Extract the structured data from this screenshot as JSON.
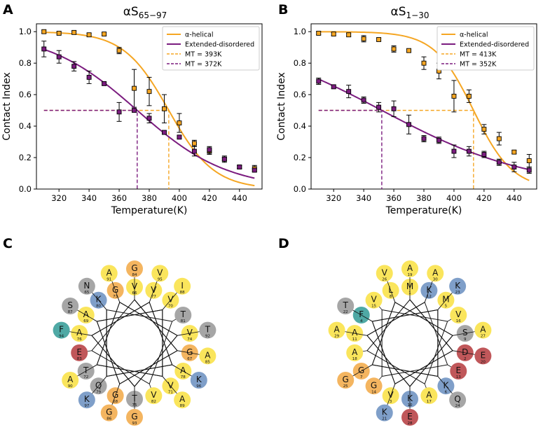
{
  "panels": {
    "A": {
      "letter": "A",
      "title_main": "αS",
      "title_sub": "65−97",
      "xlabel": "Temperature(K)",
      "ylabel": "Contact Index",
      "xticks": [
        320,
        340,
        360,
        380,
        400,
        420,
        440
      ],
      "yticks": [
        "0.0",
        "0.2",
        "0.4",
        "0.6",
        "0.8",
        "1.0"
      ],
      "legend": [
        "α-helical",
        "Extended-disordered",
        "MT = 393K",
        "MT = 372K"
      ]
    },
    "B": {
      "letter": "B",
      "title_main": "αS",
      "title_sub": "1−30",
      "xlabel": "Temperature(K)",
      "ylabel": "Contact Index",
      "xticks": [
        320,
        340,
        360,
        380,
        400,
        420,
        440
      ],
      "yticks": [
        "0.0",
        "0.2",
        "0.4",
        "0.6",
        "0.8",
        "1.0"
      ],
      "legend": [
        "α-helical",
        "Extended-disordered",
        "MT = 413K",
        "MT = 352K"
      ]
    },
    "C": {
      "letter": "C"
    },
    "D": {
      "letter": "D"
    }
  },
  "colors": {
    "helical": "#F5A623",
    "disordered": "#7B1C7F",
    "yellow": "#FAE55C",
    "orange": "#F4B560",
    "red": "#C0575A",
    "blue": "#7F9FC9",
    "grey": "#A6A6A6",
    "teal": "#4FA9A5"
  },
  "chart_data": [
    {
      "panel": "A",
      "type": "line",
      "title": "αS65−97",
      "xlabel": "Temperature(K)",
      "ylabel": "Contact Index",
      "xlim": [
        305,
        455
      ],
      "ylim": [
        0,
        1.05
      ],
      "series": [
        {
          "name": "α-helical",
          "x": [
            310,
            320,
            330,
            340,
            350,
            360,
            370,
            380,
            390,
            400,
            410,
            420,
            430,
            440,
            450
          ],
          "y": [
            1.0,
            0.99,
            0.995,
            0.98,
            0.985,
            0.88,
            0.64,
            0.62,
            0.51,
            0.42,
            0.29,
            0.24,
            0.19,
            0.14,
            0.13
          ],
          "err": [
            0.01,
            0.01,
            0.01,
            0.01,
            0.01,
            0.02,
            0.12,
            0.09,
            0.09,
            0.06,
            0.02,
            0.02,
            0.02,
            0.01,
            0.02
          ],
          "fit": {
            "mt": 393,
            "k": 15
          }
        },
        {
          "name": "Extended-disordered",
          "x": [
            310,
            320,
            330,
            340,
            350,
            360,
            370,
            380,
            390,
            400,
            410,
            420,
            430,
            440,
            450
          ],
          "y": [
            0.89,
            0.84,
            0.78,
            0.71,
            0.67,
            0.49,
            0.5,
            0.45,
            0.36,
            0.33,
            0.24,
            0.25,
            0.19,
            0.14,
            0.12
          ],
          "err": [
            0.05,
            0.04,
            0.03,
            0.04,
            0.01,
            0.06,
            0.01,
            0.03,
            0.01,
            0.01,
            0.03,
            0.02,
            0.01,
            0.01,
            0.01
          ],
          "fit": {
            "mt": 372,
            "k": 30
          }
        }
      ],
      "mt_lines": [
        {
          "name": "MT = 393K",
          "temp": 393,
          "series": "α-helical"
        },
        {
          "name": "MT = 372K",
          "temp": 372,
          "series": "Extended-disordered"
        }
      ]
    },
    {
      "panel": "B",
      "type": "line",
      "title": "αS1−30",
      "xlabel": "Temperature(K)",
      "ylabel": "Contact Index",
      "xlim": [
        305,
        455
      ],
      "ylim": [
        0,
        1.05
      ],
      "series": [
        {
          "name": "α-helical",
          "x": [
            310,
            320,
            330,
            340,
            350,
            360,
            370,
            380,
            390,
            400,
            410,
            420,
            430,
            440,
            450
          ],
          "y": [
            0.99,
            0.985,
            0.98,
            0.955,
            0.95,
            0.89,
            0.88,
            0.8,
            0.75,
            0.59,
            0.59,
            0.38,
            0.32,
            0.235,
            0.18
          ],
          "err": [
            0.01,
            0.01,
            0.01,
            0.02,
            0.01,
            0.02,
            0.01,
            0.04,
            0.05,
            0.1,
            0.04,
            0.03,
            0.04,
            0.01,
            0.04
          ],
          "fit": {
            "mt": 413,
            "k": 13
          }
        },
        {
          "name": "Extended-disordered",
          "x": [
            310,
            320,
            330,
            340,
            350,
            360,
            370,
            380,
            390,
            400,
            410,
            420,
            430,
            440,
            450
          ],
          "y": [
            0.685,
            0.65,
            0.62,
            0.565,
            0.52,
            0.51,
            0.41,
            0.32,
            0.31,
            0.24,
            0.24,
            0.22,
            0.17,
            0.14,
            0.12
          ],
          "err": [
            0.02,
            0.01,
            0.04,
            0.02,
            0.03,
            0.05,
            0.06,
            0.02,
            0.02,
            0.04,
            0.03,
            0.02,
            0.02,
            0.03,
            0.02
          ],
          "fit": {
            "mt": 352,
            "k": 50
          }
        }
      ],
      "mt_lines": [
        {
          "name": "MT = 413K",
          "temp": 413,
          "series": "α-helical"
        },
        {
          "name": "MT = 352K",
          "temp": 352,
          "series": "Extended-disordered"
        }
      ]
    }
  ],
  "wheels": {
    "C": [
      {
        "aa": "V",
        "num": "66",
        "color": "yellow"
      },
      {
        "aa": "G",
        "num": "67",
        "color": "orange"
      },
      {
        "aa": "G",
        "num": "68",
        "color": "orange"
      },
      {
        "aa": "A",
        "num": "69",
        "color": "yellow"
      },
      {
        "aa": "V",
        "num": "70",
        "color": "yellow"
      },
      {
        "aa": "V",
        "num": "71",
        "color": "yellow"
      },
      {
        "aa": "T",
        "num": "72",
        "color": "grey"
      },
      {
        "aa": "G",
        "num": "73",
        "color": "orange"
      },
      {
        "aa": "V",
        "num": "74",
        "color": "yellow"
      },
      {
        "aa": "T",
        "num": "75",
        "color": "grey"
      },
      {
        "aa": "A",
        "num": "76",
        "color": "yellow"
      },
      {
        "aa": "V",
        "num": "77",
        "color": "yellow"
      },
      {
        "aa": "A",
        "num": "78",
        "color": "yellow"
      },
      {
        "aa": "Q",
        "num": "79",
        "color": "grey"
      },
      {
        "aa": "K",
        "num": "80",
        "color": "blue"
      },
      {
        "aa": "T",
        "num": "81",
        "color": "grey"
      },
      {
        "aa": "V",
        "num": "82",
        "color": "yellow"
      },
      {
        "aa": "E",
        "num": "83",
        "color": "red"
      },
      {
        "aa": "G",
        "num": "84",
        "color": "orange"
      },
      {
        "aa": "A",
        "num": "85",
        "color": "yellow"
      },
      {
        "aa": "G",
        "num": "86",
        "color": "orange"
      },
      {
        "aa": "S",
        "num": "87",
        "color": "grey"
      },
      {
        "aa": "I",
        "num": "88",
        "color": "yellow"
      },
      {
        "aa": "A",
        "num": "89",
        "color": "yellow"
      },
      {
        "aa": "A",
        "num": "90",
        "color": "yellow"
      },
      {
        "aa": "A",
        "num": "91",
        "color": "yellow"
      },
      {
        "aa": "T",
        "num": "92",
        "color": "grey"
      },
      {
        "aa": "G",
        "num": "93",
        "color": "orange"
      },
      {
        "aa": "F",
        "num": "94",
        "color": "teal"
      },
      {
        "aa": "V",
        "num": "95",
        "color": "yellow"
      },
      {
        "aa": "K",
        "num": "96",
        "color": "blue"
      },
      {
        "aa": "K",
        "num": "97",
        "color": "blue"
      },
      {
        "aa": "N",
        "num": "65",
        "color": "grey"
      }
    ],
    "D": [
      {
        "aa": "M",
        "num": "1",
        "color": "yellow"
      },
      {
        "aa": "D",
        "num": "2",
        "color": "red"
      },
      {
        "aa": "V",
        "num": "3",
        "color": "yellow"
      },
      {
        "aa": "F",
        "num": "4",
        "color": "teal"
      },
      {
        "aa": "M",
        "num": "5",
        "color": "yellow"
      },
      {
        "aa": "K",
        "num": "6",
        "color": "blue"
      },
      {
        "aa": "G",
        "num": "7",
        "color": "orange"
      },
      {
        "aa": "L",
        "num": "8",
        "color": "yellow"
      },
      {
        "aa": "S",
        "num": "9",
        "color": "grey"
      },
      {
        "aa": "K",
        "num": "10",
        "color": "blue"
      },
      {
        "aa": "A",
        "num": "11",
        "color": "yellow"
      },
      {
        "aa": "K",
        "num": "12",
        "color": "blue"
      },
      {
        "aa": "E",
        "num": "13",
        "color": "red"
      },
      {
        "aa": "G",
        "num": "14",
        "color": "orange"
      },
      {
        "aa": "V",
        "num": "15",
        "color": "yellow"
      },
      {
        "aa": "V",
        "num": "16",
        "color": "yellow"
      },
      {
        "aa": "A",
        "num": "17",
        "color": "yellow"
      },
      {
        "aa": "A",
        "num": "18",
        "color": "yellow"
      },
      {
        "aa": "A",
        "num": "19",
        "color": "yellow"
      },
      {
        "aa": "E",
        "num": "20",
        "color": "red"
      },
      {
        "aa": "K",
        "num": "21",
        "color": "blue"
      },
      {
        "aa": "T",
        "num": "22",
        "color": "grey"
      },
      {
        "aa": "K",
        "num": "23",
        "color": "blue"
      },
      {
        "aa": "Q",
        "num": "24",
        "color": "grey"
      },
      {
        "aa": "G",
        "num": "25",
        "color": "orange"
      },
      {
        "aa": "V",
        "num": "26",
        "color": "yellow"
      },
      {
        "aa": "A",
        "num": "27",
        "color": "yellow"
      },
      {
        "aa": "E",
        "num": "28",
        "color": "red"
      },
      {
        "aa": "A",
        "num": "29",
        "color": "yellow"
      },
      {
        "aa": "A",
        "num": "30",
        "color": "yellow"
      }
    ]
  }
}
